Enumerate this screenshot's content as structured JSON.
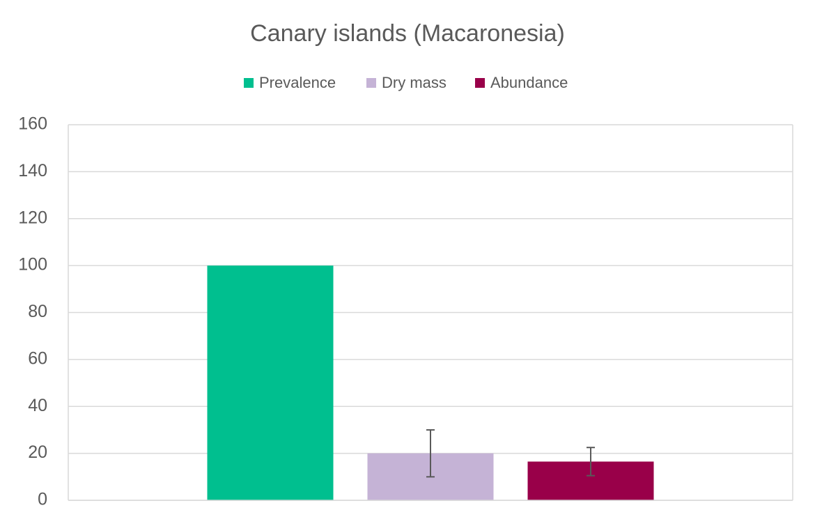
{
  "chart_data": {
    "type": "bar",
    "title": "Canary islands (Macaronesia)",
    "categories": [
      null
    ],
    "series": [
      {
        "name": "Prevalence",
        "color": "#00bf8f",
        "values": [
          100
        ]
      },
      {
        "name": "Dry mass",
        "color": "#c5b3d6",
        "values": [
          20
        ],
        "errors": [
          10
        ]
      },
      {
        "name": "Abundance",
        "color": "#990049",
        "values": [
          16.5
        ],
        "errors": [
          6
        ]
      }
    ],
    "ylim": [
      0,
      160
    ],
    "yticks": [
      0,
      20,
      40,
      60,
      80,
      100,
      120,
      140,
      160
    ],
    "grid": true,
    "legend": "top"
  }
}
